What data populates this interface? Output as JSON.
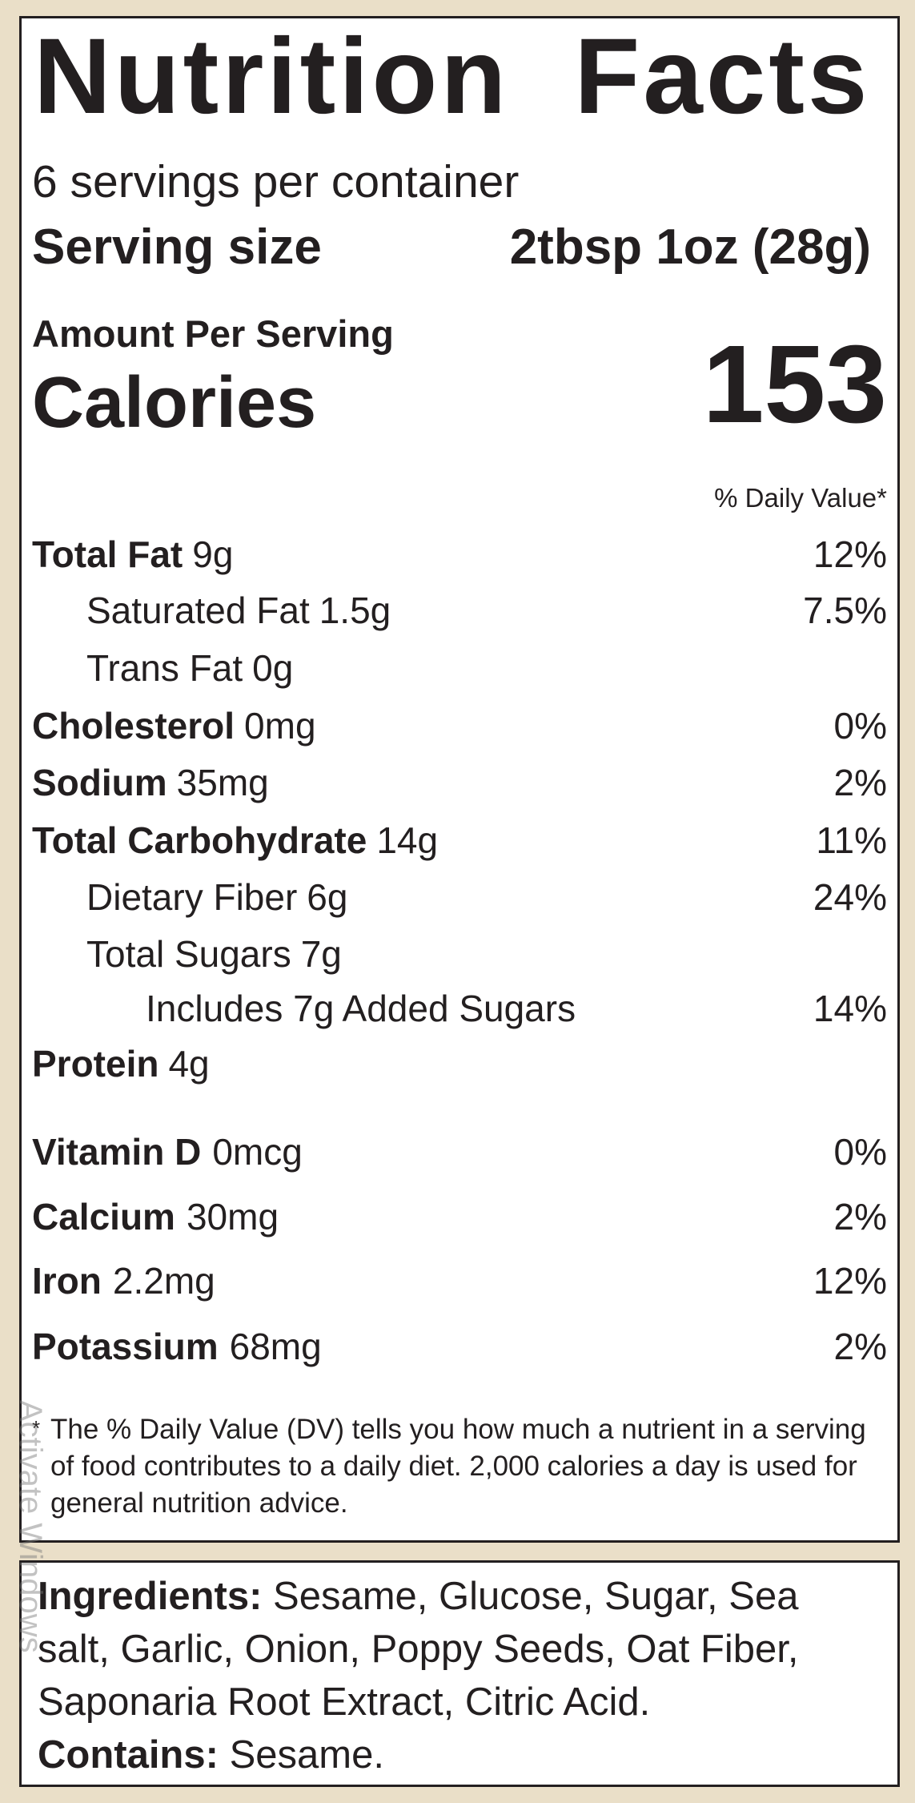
{
  "header": {
    "title": "Nutrition Facts",
    "servings": "6 servings per container",
    "serving_size_label": "Serving size",
    "serving_size": "2tbsp 1oz (28g)"
  },
  "calories": {
    "amount_label": "Amount Per Serving",
    "label": "Calories",
    "value": 153
  },
  "dv_header": "% Daily Value*",
  "rows": [
    {
      "name": "Total Fat",
      "amount": "9g",
      "dv": "12%"
    },
    {
      "name": "Saturated Fat",
      "amount": "1.5g",
      "dv": "7.5%"
    },
    {
      "name": "Trans Fat",
      "amount": "0g"
    },
    {
      "name": "Cholesterol",
      "amount": "0mg",
      "dv": "0%"
    },
    {
      "name": "Sodium",
      "amount": "35mg",
      "dv": "2%"
    },
    {
      "name": "Total Carbohydrate",
      "amount": "14g",
      "dv": "11%"
    },
    {
      "name": "Dietary Fiber",
      "amount": "6g",
      "dv": "24%"
    },
    {
      "name": "Total Sugars",
      "amount": "7g"
    },
    {
      "name": "Includes 7g Added Sugars",
      "dv": "14%"
    },
    {
      "name": "Protein",
      "amount": "4g"
    }
  ],
  "vitamins": [
    {
      "name": "Vitamin D",
      "amount": "0mcg",
      "dv": "0%"
    },
    {
      "name": "Calcium",
      "amount": "30mg",
      "dv": "2%"
    },
    {
      "name": "Iron",
      "amount": "2.2mg",
      "dv": "12%"
    },
    {
      "name": "Potassium",
      "amount": "68mg",
      "dv": "2%"
    }
  ],
  "footnote": {
    "mark": "*",
    "text": "The % Daily Value (DV) tells you how much a nutrient in a serving of food contributes to a daily diet. 2,000 calories a day is used for general nutrition advice."
  },
  "ingredients": {
    "label": "Ingredients:",
    "text": "Sesame, Glucose, Sugar, Sea salt, Garlic, Onion, Poppy Seeds, Oat Fiber, Saponaria Root Extract, Citric Acid.",
    "contains_label": "Contains:",
    "contains": "Sesame."
  },
  "watermark": "Activate Windows"
}
